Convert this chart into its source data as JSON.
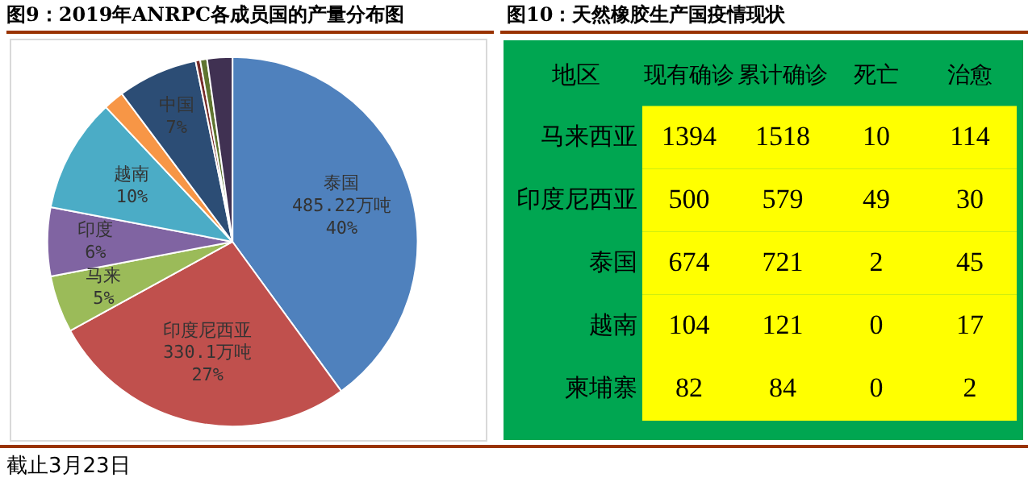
{
  "chart_data": [
    {
      "type": "pie",
      "title": "图9：2019年ANRPC各成员国的产量分布图",
      "categories": [
        "泰国",
        "印度尼西亚",
        "马来",
        "印度",
        "越南",
        null,
        "中国",
        null,
        null,
        null
      ],
      "values": [
        40,
        27,
        5,
        6,
        10,
        1.8,
        7,
        0.4,
        0.6,
        2.2
      ],
      "colors": [
        "#4f81bd",
        "#c0504d",
        "#9bbb59",
        "#8064a2",
        "#4bacc6",
        "#f79646",
        "#2c4d75",
        "#772c2a",
        "#5f7530",
        "#403152"
      ],
      "value_labels": [
        "485.22万吨\n40%",
        "330.1万吨\n27%",
        "5%",
        "6%",
        "10%",
        null,
        "7%",
        null,
        null,
        null
      ],
      "annotations": [
        "截止3月23日"
      ]
    },
    {
      "type": "heatmap",
      "title": "图10：天然橡胶生产国疫情现状",
      "ylabel": "地区",
      "categories": [
        "现有确诊",
        "累计确诊",
        "死亡",
        "治愈"
      ],
      "y_categories": [
        "马来西亚",
        "印度尼西亚",
        "泰国",
        "越南",
        "柬埔寨"
      ],
      "cells": [
        [
          1394,
          1518,
          10,
          114
        ],
        [
          500,
          579,
          49,
          30
        ],
        [
          674,
          721,
          2,
          45
        ],
        [
          104,
          121,
          0,
          17
        ],
        [
          82,
          84,
          0,
          2
        ]
      ],
      "color": "#ffff00",
      "data_labels": true
    }
  ]
}
